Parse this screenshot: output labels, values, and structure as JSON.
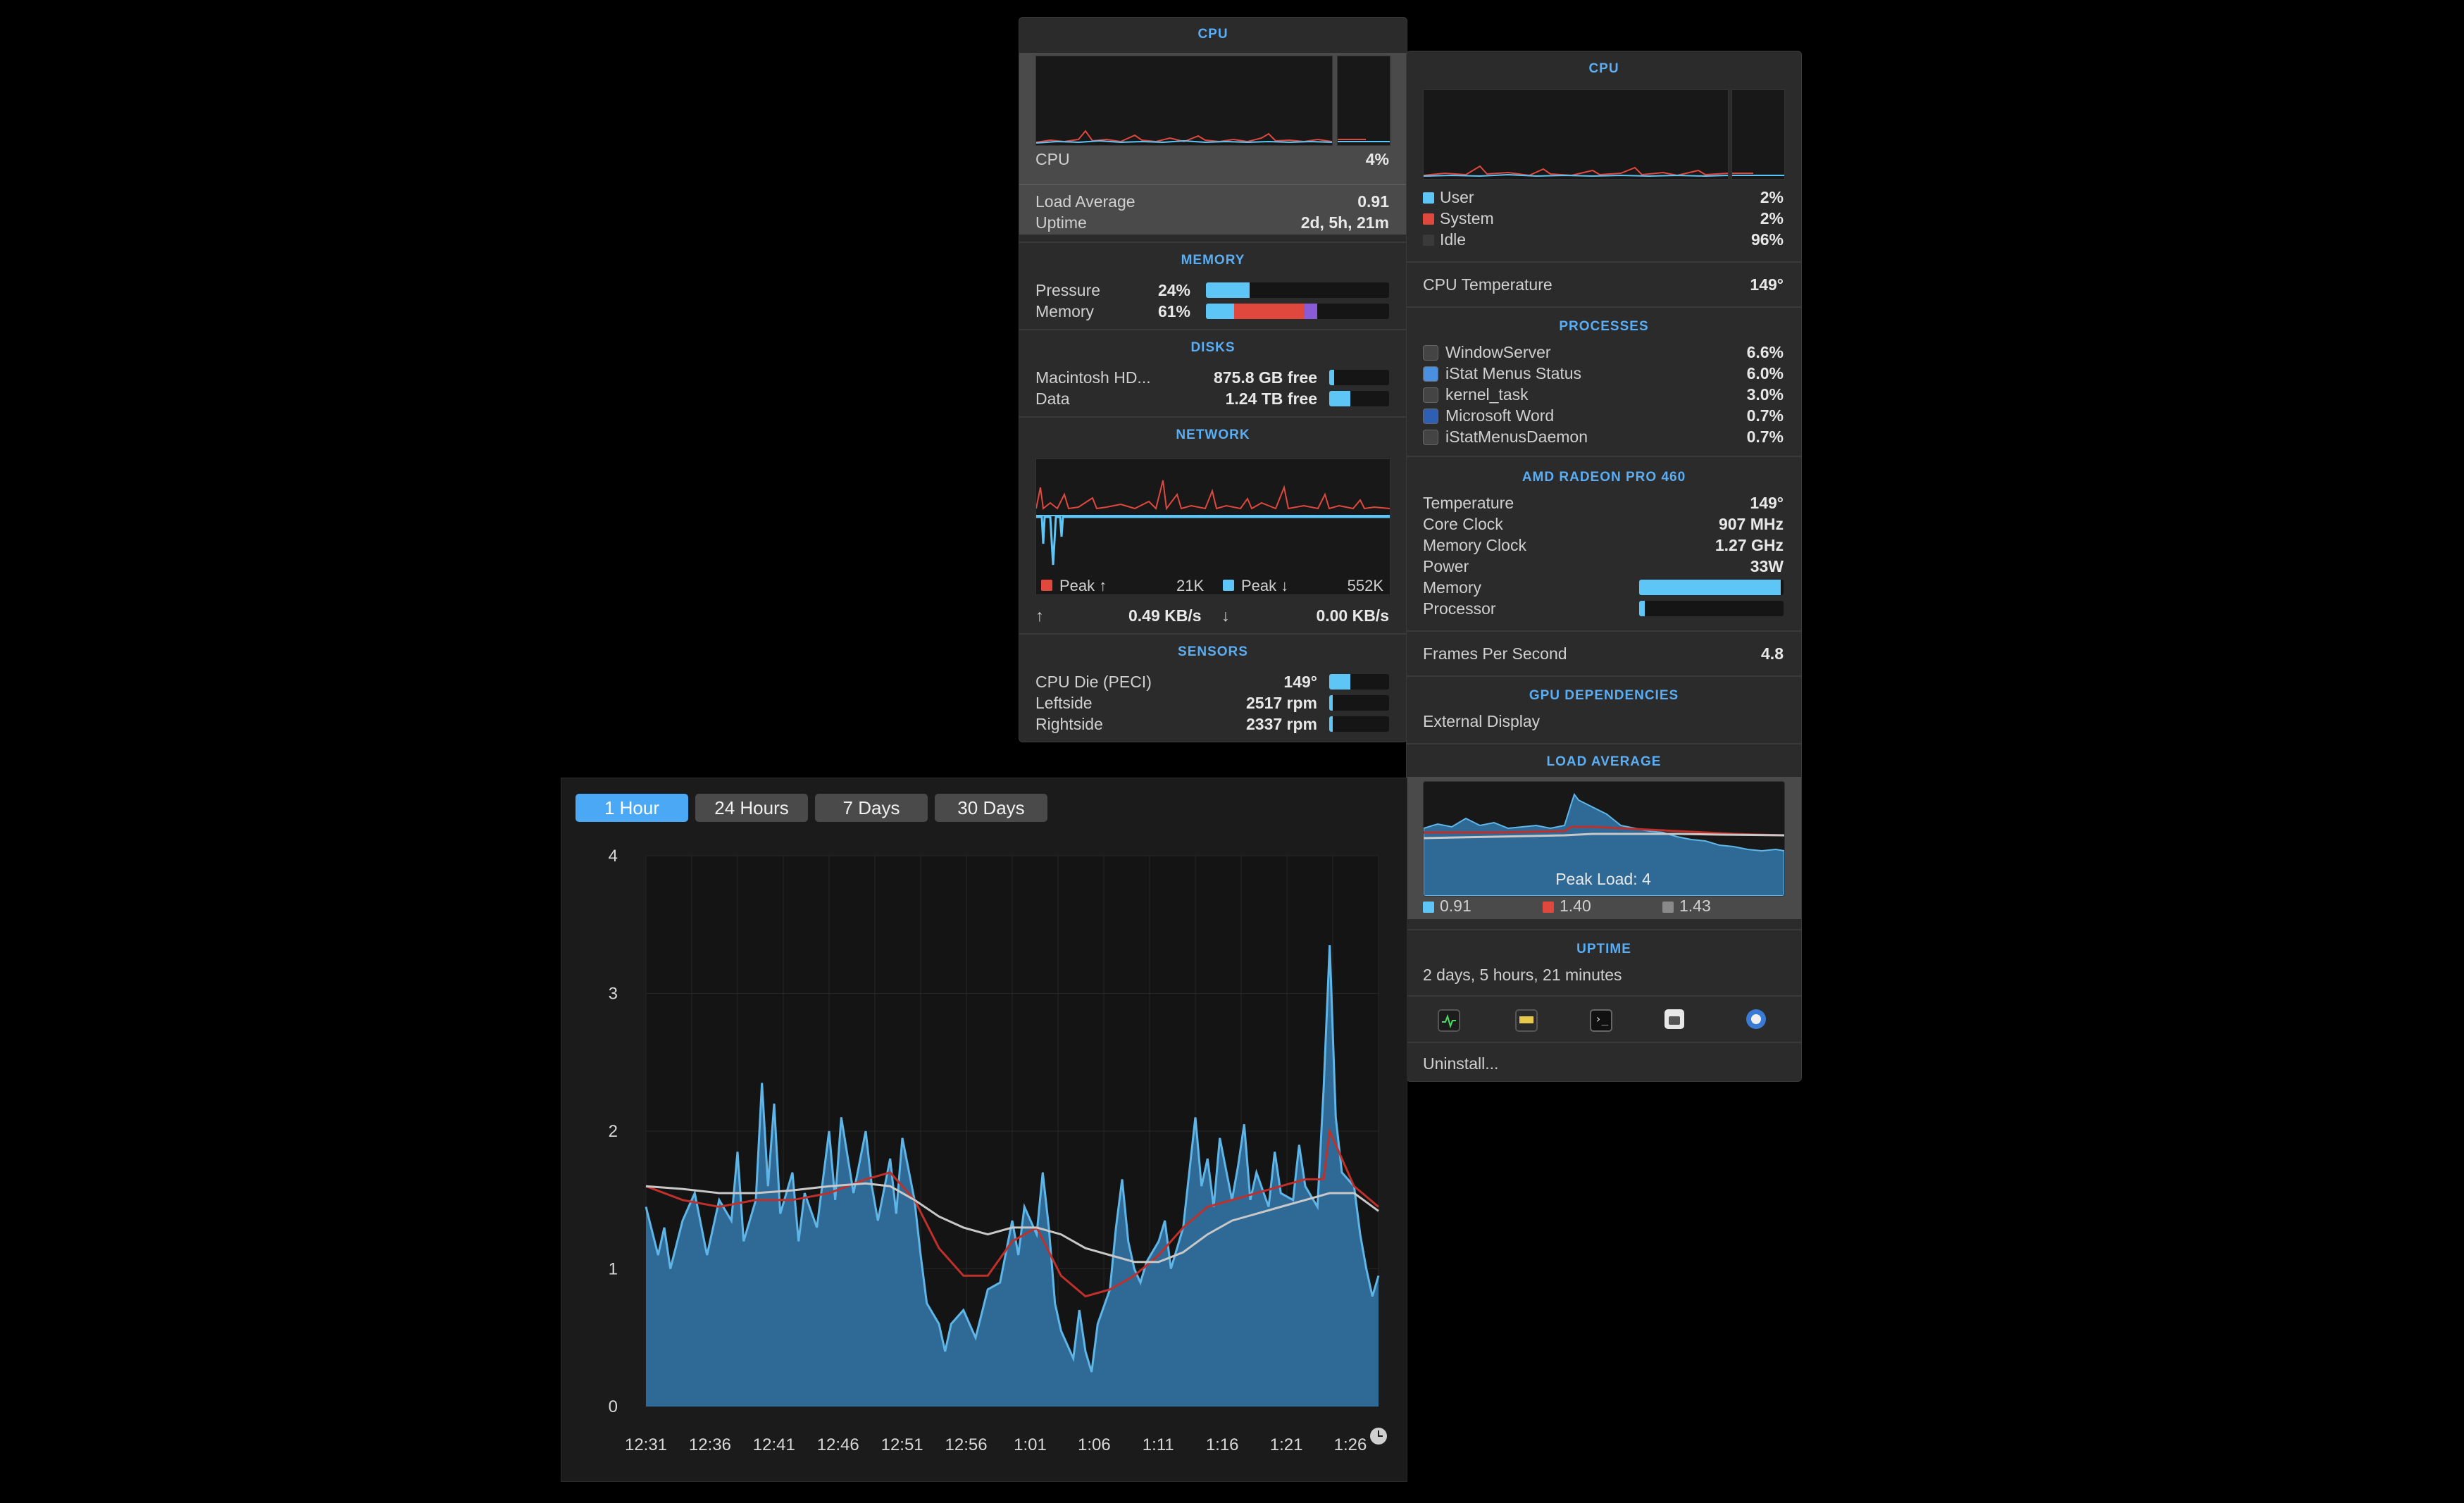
{
  "left_panel": {
    "cpu": {
      "header": "CPU",
      "label": "CPU",
      "value": "4%",
      "load_avg_label": "Load Average",
      "load_avg_value": "0.91",
      "uptime_label": "Uptime",
      "uptime_value": "2d, 5h, 21m"
    },
    "memory": {
      "header": "MEMORY",
      "pressure_label": "Pressure",
      "pressure_value": "24%",
      "pressure_fraction": 0.24,
      "memory_label": "Memory",
      "memory_value": "61%",
      "memory_fraction": 0.61
    },
    "disks": {
      "header": "DISKS",
      "items": [
        {
          "name": "Macintosh HD...",
          "value": "875.8 GB free",
          "fraction": 0.08
        },
        {
          "name": "Data",
          "value": "1.24 TB free",
          "fraction": 0.35
        }
      ]
    },
    "network": {
      "header": "NETWORK",
      "peak_up_label": "Peak ↑",
      "peak_up_value": "21K",
      "peak_down_label": "Peak ↓",
      "peak_down_value": "552K",
      "up_arrow": "↑",
      "up_rate": "0.49 KB/s",
      "down_arrow": "↓",
      "down_rate": "0.00 KB/s",
      "up_color": "#e0483e",
      "down_color": "#5ec6f7"
    },
    "sensors": {
      "header": "SENSORS",
      "items": [
        {
          "name": "CPU Die (PECI)",
          "value": "149°",
          "fraction": 0.35
        },
        {
          "name": "Leftside",
          "value": "2517 rpm",
          "fraction": 0.05
        },
        {
          "name": "Rightside",
          "value": "2337 rpm",
          "fraction": 0.05
        }
      ]
    }
  },
  "right_panel": {
    "cpu": {
      "header": "CPU",
      "user_label": "User",
      "user_value": "2%",
      "system_label": "System",
      "system_value": "2%",
      "idle_label": "Idle",
      "idle_value": "96%",
      "temp_label": "CPU Temperature",
      "temp_value": "149°"
    },
    "processes": {
      "header": "PROCESSES",
      "items": [
        {
          "name": "WindowServer",
          "value": "6.6%"
        },
        {
          "name": "iStat Menus Status",
          "value": "6.0%"
        },
        {
          "name": "kernel_task",
          "value": "3.0%"
        },
        {
          "name": "Microsoft Word",
          "value": "0.7%"
        },
        {
          "name": "iStatMenusDaemon",
          "value": "0.7%"
        }
      ]
    },
    "gpu": {
      "header": "AMD RADEON PRO 460",
      "temperature_label": "Temperature",
      "temperature_value": "149°",
      "core_clock_label": "Core Clock",
      "core_clock_value": "907 MHz",
      "memory_clock_label": "Memory Clock",
      "memory_clock_value": "1.27 GHz",
      "power_label": "Power",
      "power_value": "33W",
      "memory_bar_label": "Memory",
      "memory_bar_fraction": 0.98,
      "processor_bar_label": "Processor",
      "processor_bar_fraction": 0.04,
      "fps_label": "Frames Per Second",
      "fps_value": "4.8"
    },
    "gpu_dependencies": {
      "header": "GPU DEPENDENCIES",
      "item": "External Display"
    },
    "load_average": {
      "header": "LOAD AVERAGE",
      "peak_label": "Peak Load: 4",
      "legend": [
        {
          "value": "0.91",
          "color": "#5ec6f7"
        },
        {
          "value": "1.40",
          "color": "#e0483e"
        },
        {
          "value": "1.43",
          "color": "#8a8a8a"
        }
      ]
    },
    "uptime": {
      "header": "UPTIME",
      "value": "2 days, 5 hours, 21 minutes"
    },
    "toolbar_icons": [
      "activity-monitor-icon",
      "console-icon",
      "terminal-icon",
      "system-info-icon",
      "istat-menus-icon"
    ],
    "uninstall_label": "Uninstall..."
  },
  "history_panel": {
    "tabs": [
      {
        "label": "1 Hour",
        "active": true
      },
      {
        "label": "24 Hours",
        "active": false
      },
      {
        "label": "7 Days",
        "active": false
      },
      {
        "label": "30 Days",
        "active": false
      }
    ]
  },
  "chart_data": {
    "type": "area",
    "title": "",
    "xlabel": "",
    "ylabel": "",
    "ylim": [
      0,
      4
    ],
    "y_ticks": [
      "0",
      "1",
      "2",
      "3",
      "4"
    ],
    "x_tick_labels": [
      "12:31",
      "12:36",
      "12:41",
      "12:46",
      "12:51",
      "12:56",
      "1:01",
      "1:06",
      "1:11",
      "1:16",
      "1:21",
      "1:26"
    ],
    "x_range_minutes": [
      0,
      60
    ],
    "grid": true,
    "series": [
      {
        "type": "area",
        "color": "#5eb6e8",
        "fill": "#2f6a96",
        "points": [
          [
            0,
            1.45
          ],
          [
            1,
            1.1
          ],
          [
            1.5,
            1.3
          ],
          [
            2,
            1.0
          ],
          [
            3,
            1.35
          ],
          [
            4,
            1.55
          ],
          [
            5,
            1.1
          ],
          [
            6,
            1.5
          ],
          [
            7,
            1.35
          ],
          [
            7.5,
            1.85
          ],
          [
            8,
            1.2
          ],
          [
            9,
            1.5
          ],
          [
            9.5,
            2.35
          ],
          [
            10,
            1.6
          ],
          [
            10.5,
            2.2
          ],
          [
            11,
            1.4
          ],
          [
            12,
            1.7
          ],
          [
            12.5,
            1.2
          ],
          [
            13,
            1.55
          ],
          [
            14,
            1.3
          ],
          [
            15,
            2.0
          ],
          [
            15.5,
            1.5
          ],
          [
            16,
            2.1
          ],
          [
            17,
            1.55
          ],
          [
            18,
            2.0
          ],
          [
            18.5,
            1.6
          ],
          [
            19,
            1.35
          ],
          [
            20,
            1.8
          ],
          [
            20.5,
            1.4
          ],
          [
            21,
            1.95
          ],
          [
            22,
            1.5
          ],
          [
            22.5,
            1.1
          ],
          [
            23,
            0.75
          ],
          [
            24,
            0.6
          ],
          [
            24.5,
            0.4
          ],
          [
            25,
            0.6
          ],
          [
            26,
            0.7
          ],
          [
            27,
            0.5
          ],
          [
            28,
            0.85
          ],
          [
            29,
            0.9
          ],
          [
            30,
            1.35
          ],
          [
            30.5,
            1.1
          ],
          [
            31,
            1.45
          ],
          [
            32,
            1.25
          ],
          [
            32.5,
            1.7
          ],
          [
            33,
            1.3
          ],
          [
            33.5,
            0.75
          ],
          [
            34,
            0.55
          ],
          [
            35,
            0.35
          ],
          [
            35.5,
            0.7
          ],
          [
            36,
            0.4
          ],
          [
            36.5,
            0.25
          ],
          [
            37,
            0.6
          ],
          [
            38,
            0.85
          ],
          [
            38.5,
            1.3
          ],
          [
            39,
            1.65
          ],
          [
            39.5,
            1.2
          ],
          [
            40,
            1.0
          ],
          [
            40.5,
            0.9
          ],
          [
            41,
            1.05
          ],
          [
            42,
            1.2
          ],
          [
            42.5,
            1.35
          ],
          [
            43,
            1.0
          ],
          [
            44,
            1.3
          ],
          [
            44.5,
            1.7
          ],
          [
            45,
            2.1
          ],
          [
            45.5,
            1.6
          ],
          [
            46,
            1.8
          ],
          [
            46.5,
            1.45
          ],
          [
            47,
            1.95
          ],
          [
            48,
            1.5
          ],
          [
            48.5,
            1.75
          ],
          [
            49,
            2.05
          ],
          [
            49.5,
            1.5
          ],
          [
            50,
            1.7
          ],
          [
            51,
            1.45
          ],
          [
            51.5,
            1.85
          ],
          [
            52,
            1.55
          ],
          [
            53,
            1.5
          ],
          [
            53.5,
            1.9
          ],
          [
            54,
            1.6
          ],
          [
            55,
            1.45
          ],
          [
            55.5,
            2.3
          ],
          [
            56,
            3.35
          ],
          [
            56.5,
            2.1
          ],
          [
            57,
            1.7
          ],
          [
            58,
            1.6
          ],
          [
            58.5,
            1.25
          ],
          [
            59,
            1.0
          ],
          [
            59.5,
            0.8
          ],
          [
            60,
            0.95
          ]
        ]
      },
      {
        "type": "line",
        "color": "#c0302a",
        "points": [
          [
            0,
            1.6
          ],
          [
            3,
            1.5
          ],
          [
            6,
            1.45
          ],
          [
            9,
            1.5
          ],
          [
            12,
            1.5
          ],
          [
            15,
            1.55
          ],
          [
            18,
            1.65
          ],
          [
            20,
            1.7
          ],
          [
            22,
            1.5
          ],
          [
            24,
            1.15
          ],
          [
            26,
            0.95
          ],
          [
            28,
            0.95
          ],
          [
            30,
            1.2
          ],
          [
            32,
            1.3
          ],
          [
            34,
            0.95
          ],
          [
            36,
            0.8
          ],
          [
            38,
            0.85
          ],
          [
            40,
            0.95
          ],
          [
            42,
            1.1
          ],
          [
            44,
            1.3
          ],
          [
            46,
            1.45
          ],
          [
            48,
            1.5
          ],
          [
            50,
            1.55
          ],
          [
            52,
            1.6
          ],
          [
            54,
            1.65
          ],
          [
            55.5,
            1.65
          ],
          [
            56,
            2.0
          ],
          [
            57,
            1.8
          ],
          [
            58,
            1.6
          ],
          [
            60,
            1.45
          ]
        ]
      },
      {
        "type": "line",
        "color": "#c8c8c8",
        "points": [
          [
            0,
            1.6
          ],
          [
            3,
            1.58
          ],
          [
            6,
            1.55
          ],
          [
            9,
            1.55
          ],
          [
            12,
            1.57
          ],
          [
            15,
            1.6
          ],
          [
            18,
            1.62
          ],
          [
            20,
            1.6
          ],
          [
            22,
            1.5
          ],
          [
            24,
            1.38
          ],
          [
            26,
            1.3
          ],
          [
            28,
            1.25
          ],
          [
            30,
            1.3
          ],
          [
            32,
            1.3
          ],
          [
            34,
            1.25
          ],
          [
            36,
            1.15
          ],
          [
            38,
            1.1
          ],
          [
            40,
            1.05
          ],
          [
            42,
            1.05
          ],
          [
            44,
            1.12
          ],
          [
            46,
            1.25
          ],
          [
            48,
            1.35
          ],
          [
            50,
            1.4
          ],
          [
            52,
            1.45
          ],
          [
            54,
            1.5
          ],
          [
            56,
            1.55
          ],
          [
            58,
            1.55
          ],
          [
            60,
            1.42
          ]
        ]
      }
    ]
  }
}
